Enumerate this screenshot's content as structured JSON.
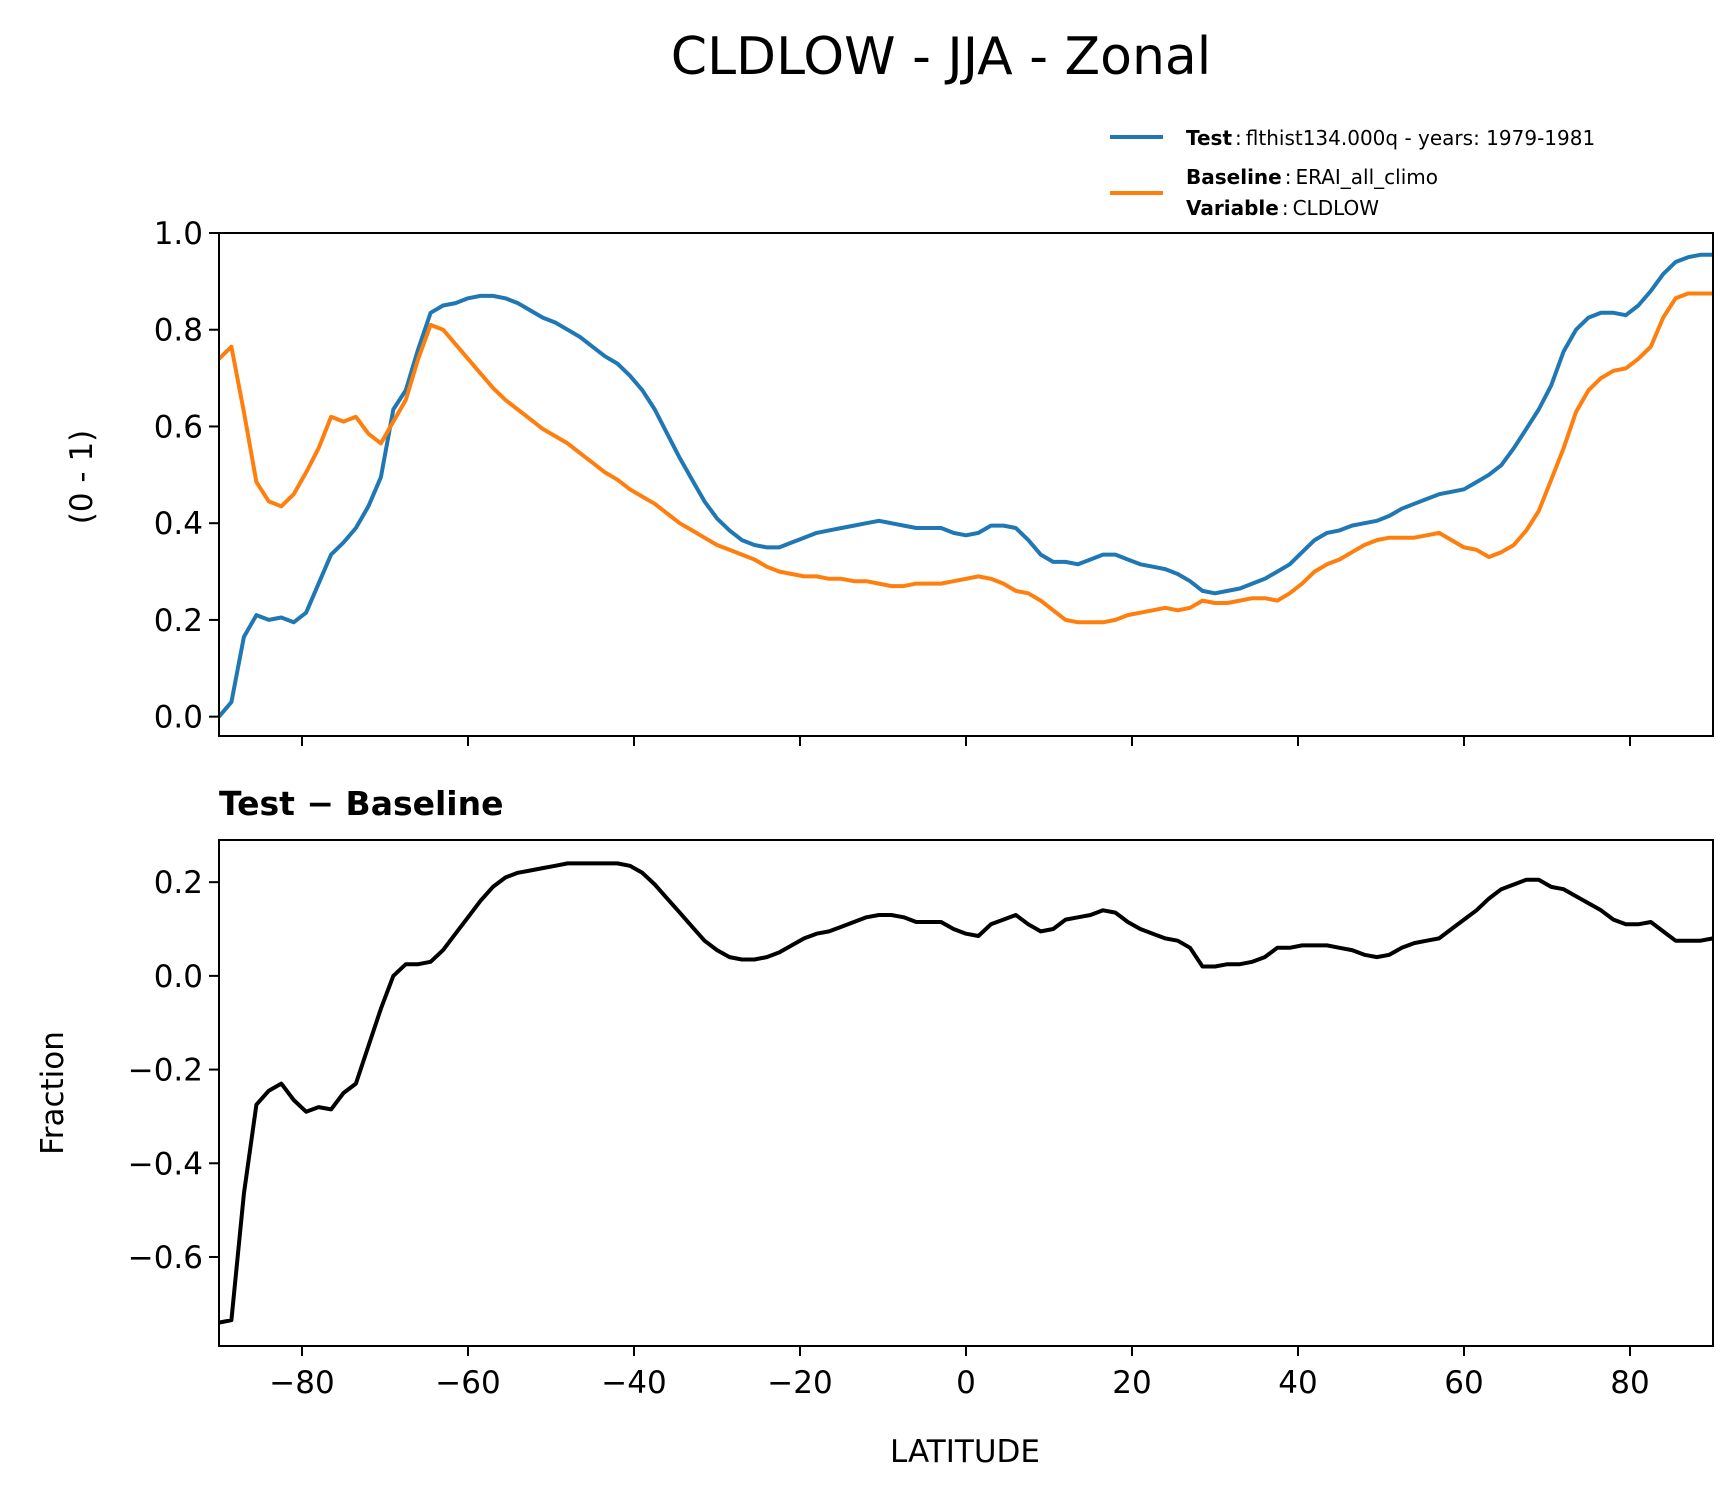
{
  "chart_data": {
    "type": "line",
    "title": "CLDLOW - JJA - Zonal",
    "xlabel": "LATITUDE",
    "xlim": [
      -90,
      90
    ],
    "xticks": [
      -80,
      -60,
      -40,
      -20,
      0,
      20,
      40,
      60,
      80
    ],
    "xtick_labels": [
      "−80",
      "−60",
      "−40",
      "−20",
      "0",
      "20",
      "40",
      "60",
      "80"
    ],
    "panels": [
      {
        "name": "zonal-mean",
        "ylabel": "(0 - 1)",
        "ylim": [
          -0.04,
          1.0
        ],
        "yticks": [
          0.0,
          0.2,
          0.4,
          0.6,
          0.8,
          1.0
        ],
        "ytick_labels": [
          "0.0",
          "0.2",
          "0.4",
          "0.6",
          "0.8",
          "1.0"
        ],
        "series": [
          {
            "name": "Test",
            "color": "#1f77b4",
            "x": [
              -90,
              -88.5,
              -87,
              -85.5,
              -84,
              -82.5,
              -81,
              -79.5,
              -78,
              -76.5,
              -75,
              -73.5,
              -72,
              -70.5,
              -69,
              -67.5,
              -66,
              -64.5,
              -63,
              -61.5,
              -60,
              -58.5,
              -57,
              -55.5,
              -54,
              -52.5,
              -51,
              -49.5,
              -48,
              -46.5,
              -45,
              -43.5,
              -42,
              -40.5,
              -39,
              -37.5,
              -36,
              -34.5,
              -33,
              -31.5,
              -30,
              -28.5,
              -27,
              -25.5,
              -24,
              -22.5,
              -21,
              -19.5,
              -18,
              -16.5,
              -15,
              -13.5,
              -12,
              -10.5,
              -9,
              -7.5,
              -6,
              -4.5,
              -3,
              -1.5,
              0,
              1.5,
              3,
              4.5,
              6,
              7.5,
              9,
              10.5,
              12,
              13.5,
              15,
              16.5,
              18,
              19.5,
              21,
              22.5,
              24,
              25.5,
              27,
              28.5,
              30,
              31.5,
              33,
              34.5,
              36,
              37.5,
              39,
              40.5,
              42,
              43.5,
              45,
              46.5,
              48,
              49.5,
              51,
              52.5,
              54,
              55.5,
              57,
              58.5,
              60,
              61.5,
              63,
              64.5,
              66,
              67.5,
              69,
              70.5,
              72,
              73.5,
              75,
              76.5,
              78,
              79.5,
              81,
              82.5,
              84,
              85.5,
              87,
              88.5,
              90
            ],
            "y": [
              0.0,
              0.03,
              0.165,
              0.21,
              0.2,
              0.205,
              0.195,
              0.215,
              0.275,
              0.335,
              0.36,
              0.39,
              0.435,
              0.495,
              0.635,
              0.675,
              0.76,
              0.835,
              0.85,
              0.855,
              0.865,
              0.87,
              0.87,
              0.865,
              0.855,
              0.84,
              0.825,
              0.815,
              0.8,
              0.785,
              0.765,
              0.745,
              0.73,
              0.705,
              0.675,
              0.635,
              0.585,
              0.535,
              0.49,
              0.445,
              0.41,
              0.385,
              0.365,
              0.355,
              0.35,
              0.35,
              0.36,
              0.37,
              0.38,
              0.385,
              0.39,
              0.395,
              0.4,
              0.405,
              0.4,
              0.395,
              0.39,
              0.39,
              0.39,
              0.38,
              0.375,
              0.38,
              0.395,
              0.395,
              0.39,
              0.365,
              0.335,
              0.32,
              0.32,
              0.315,
              0.325,
              0.335,
              0.335,
              0.325,
              0.315,
              0.31,
              0.305,
              0.295,
              0.28,
              0.26,
              0.255,
              0.26,
              0.265,
              0.275,
              0.285,
              0.3,
              0.315,
              0.34,
              0.365,
              0.38,
              0.385,
              0.395,
              0.4,
              0.405,
              0.415,
              0.43,
              0.44,
              0.45,
              0.46,
              0.465,
              0.47,
              0.485,
              0.5,
              0.52,
              0.555,
              0.595,
              0.635,
              0.685,
              0.755,
              0.8,
              0.825,
              0.835,
              0.835,
              0.83,
              0.85,
              0.88,
              0.915,
              0.94,
              0.95,
              0.955,
              0.955
            ]
          },
          {
            "name": "Baseline",
            "color": "#ff7f0e",
            "x": [
              -90,
              -88.5,
              -87,
              -85.5,
              -84,
              -82.5,
              -81,
              -79.5,
              -78,
              -76.5,
              -75,
              -73.5,
              -72,
              -70.5,
              -69,
              -67.5,
              -66,
              -64.5,
              -63,
              -61.5,
              -60,
              -58.5,
              -57,
              -55.5,
              -54,
              -52.5,
              -51,
              -49.5,
              -48,
              -46.5,
              -45,
              -43.5,
              -42,
              -40.5,
              -39,
              -37.5,
              -36,
              -34.5,
              -33,
              -31.5,
              -30,
              -28.5,
              -27,
              -25.5,
              -24,
              -22.5,
              -21,
              -19.5,
              -18,
              -16.5,
              -15,
              -13.5,
              -12,
              -10.5,
              -9,
              -7.5,
              -6,
              -4.5,
              -3,
              -1.5,
              0,
              1.5,
              3,
              4.5,
              6,
              7.5,
              9,
              10.5,
              12,
              13.5,
              15,
              16.5,
              18,
              19.5,
              21,
              22.5,
              24,
              25.5,
              27,
              28.5,
              30,
              31.5,
              33,
              34.5,
              36,
              37.5,
              39,
              40.5,
              42,
              43.5,
              45,
              46.5,
              48,
              49.5,
              51,
              52.5,
              54,
              55.5,
              57,
              58.5,
              60,
              61.5,
              63,
              64.5,
              66,
              67.5,
              69,
              70.5,
              72,
              73.5,
              75,
              76.5,
              78,
              79.5,
              81,
              82.5,
              84,
              85.5,
              87,
              88.5,
              90
            ],
            "y": [
              0.74,
              0.765,
              0.63,
              0.485,
              0.445,
              0.435,
              0.46,
              0.505,
              0.555,
              0.62,
              0.61,
              0.62,
              0.585,
              0.565,
              0.61,
              0.655,
              0.74,
              0.81,
              0.8,
              0.77,
              0.74,
              0.71,
              0.68,
              0.655,
              0.635,
              0.615,
              0.595,
              0.58,
              0.565,
              0.545,
              0.525,
              0.505,
              0.49,
              0.47,
              0.455,
              0.44,
              0.42,
              0.4,
              0.385,
              0.37,
              0.355,
              0.345,
              0.335,
              0.325,
              0.31,
              0.3,
              0.295,
              0.29,
              0.29,
              0.285,
              0.285,
              0.28,
              0.28,
              0.275,
              0.27,
              0.27,
              0.275,
              0.275,
              0.275,
              0.28,
              0.285,
              0.29,
              0.285,
              0.275,
              0.26,
              0.255,
              0.24,
              0.22,
              0.2,
              0.195,
              0.195,
              0.195,
              0.2,
              0.21,
              0.215,
              0.22,
              0.225,
              0.22,
              0.225,
              0.24,
              0.235,
              0.235,
              0.24,
              0.245,
              0.245,
              0.24,
              0.255,
              0.275,
              0.3,
              0.315,
              0.325,
              0.34,
              0.355,
              0.365,
              0.37,
              0.37,
              0.37,
              0.375,
              0.38,
              0.365,
              0.35,
              0.345,
              0.33,
              0.34,
              0.355,
              0.385,
              0.425,
              0.49,
              0.555,
              0.63,
              0.675,
              0.7,
              0.715,
              0.72,
              0.74,
              0.765,
              0.825,
              0.865,
              0.875,
              0.875,
              0.875
            ]
          }
        ],
        "legend": {
          "placement": "upper-right",
          "entries": [
            {
              "series": "Test",
              "label": "Test",
              "detail": "flthist134.000q - years: 1979-1981"
            },
            {
              "series": "Baseline",
              "label": "Baseline",
              "detail": "ERAI_all_climo"
            },
            {
              "series": "Baseline",
              "label": "Variable",
              "detail": "CLDLOW"
            }
          ]
        }
      },
      {
        "name": "difference",
        "subtitle": "Test − Baseline",
        "ylabel": "Fraction",
        "ylim": [
          -0.79,
          0.29
        ],
        "yticks": [
          -0.6,
          -0.4,
          -0.2,
          0.0,
          0.2
        ],
        "ytick_labels": [
          "−0.6",
          "−0.4",
          "−0.2",
          "0.0",
          "0.2"
        ],
        "series": [
          {
            "name": "Test - Baseline",
            "color": "#000000",
            "x": [
              -90,
              -88.5,
              -87,
              -85.5,
              -84,
              -82.5,
              -81,
              -79.5,
              -78,
              -76.5,
              -75,
              -73.5,
              -72,
              -70.5,
              -69,
              -67.5,
              -66,
              -64.5,
              -63,
              -61.5,
              -60,
              -58.5,
              -57,
              -55.5,
              -54,
              -52.5,
              -51,
              -49.5,
              -48,
              -46.5,
              -45,
              -43.5,
              -42,
              -40.5,
              -39,
              -37.5,
              -36,
              -34.5,
              -33,
              -31.5,
              -30,
              -28.5,
              -27,
              -25.5,
              -24,
              -22.5,
              -21,
              -19.5,
              -18,
              -16.5,
              -15,
              -13.5,
              -12,
              -10.5,
              -9,
              -7.5,
              -6,
              -4.5,
              -3,
              -1.5,
              0,
              1.5,
              3,
              4.5,
              6,
              7.5,
              9,
              10.5,
              12,
              13.5,
              15,
              16.5,
              18,
              19.5,
              21,
              22.5,
              24,
              25.5,
              27,
              28.5,
              30,
              31.5,
              33,
              34.5,
              36,
              37.5,
              39,
              40.5,
              42,
              43.5,
              45,
              46.5,
              48,
              49.5,
              51,
              52.5,
              54,
              55.5,
              57,
              58.5,
              60,
              61.5,
              63,
              64.5,
              66,
              67.5,
              69,
              70.5,
              72,
              73.5,
              75,
              76.5,
              78,
              79.5,
              81,
              82.5,
              84,
              85.5,
              87,
              88.5,
              90
            ],
            "y": [
              -0.74,
              -0.735,
              -0.465,
              -0.275,
              -0.245,
              -0.23,
              -0.265,
              -0.29,
              -0.28,
              -0.285,
              -0.25,
              -0.23,
              -0.15,
              -0.07,
              0.0,
              0.025,
              0.025,
              0.03,
              0.055,
              0.09,
              0.125,
              0.16,
              0.19,
              0.21,
              0.22,
              0.225,
              0.23,
              0.235,
              0.24,
              0.24,
              0.24,
              0.24,
              0.24,
              0.235,
              0.22,
              0.195,
              0.165,
              0.135,
              0.105,
              0.075,
              0.055,
              0.04,
              0.035,
              0.035,
              0.04,
              0.05,
              0.065,
              0.08,
              0.09,
              0.095,
              0.105,
              0.115,
              0.125,
              0.13,
              0.13,
              0.125,
              0.115,
              0.115,
              0.115,
              0.1,
              0.09,
              0.085,
              0.11,
              0.12,
              0.13,
              0.11,
              0.095,
              0.1,
              0.12,
              0.125,
              0.13,
              0.14,
              0.135,
              0.115,
              0.1,
              0.09,
              0.08,
              0.075,
              0.06,
              0.02,
              0.02,
              0.025,
              0.025,
              0.03,
              0.04,
              0.06,
              0.06,
              0.065,
              0.065,
              0.065,
              0.06,
              0.055,
              0.045,
              0.04,
              0.045,
              0.06,
              0.07,
              0.075,
              0.08,
              0.1,
              0.12,
              0.14,
              0.165,
              0.185,
              0.195,
              0.205,
              0.205,
              0.19,
              0.185,
              0.17,
              0.155,
              0.14,
              0.12,
              0.11,
              0.11,
              0.115,
              0.095,
              0.075,
              0.075,
              0.075,
              0.08
            ]
          }
        ]
      }
    ]
  }
}
